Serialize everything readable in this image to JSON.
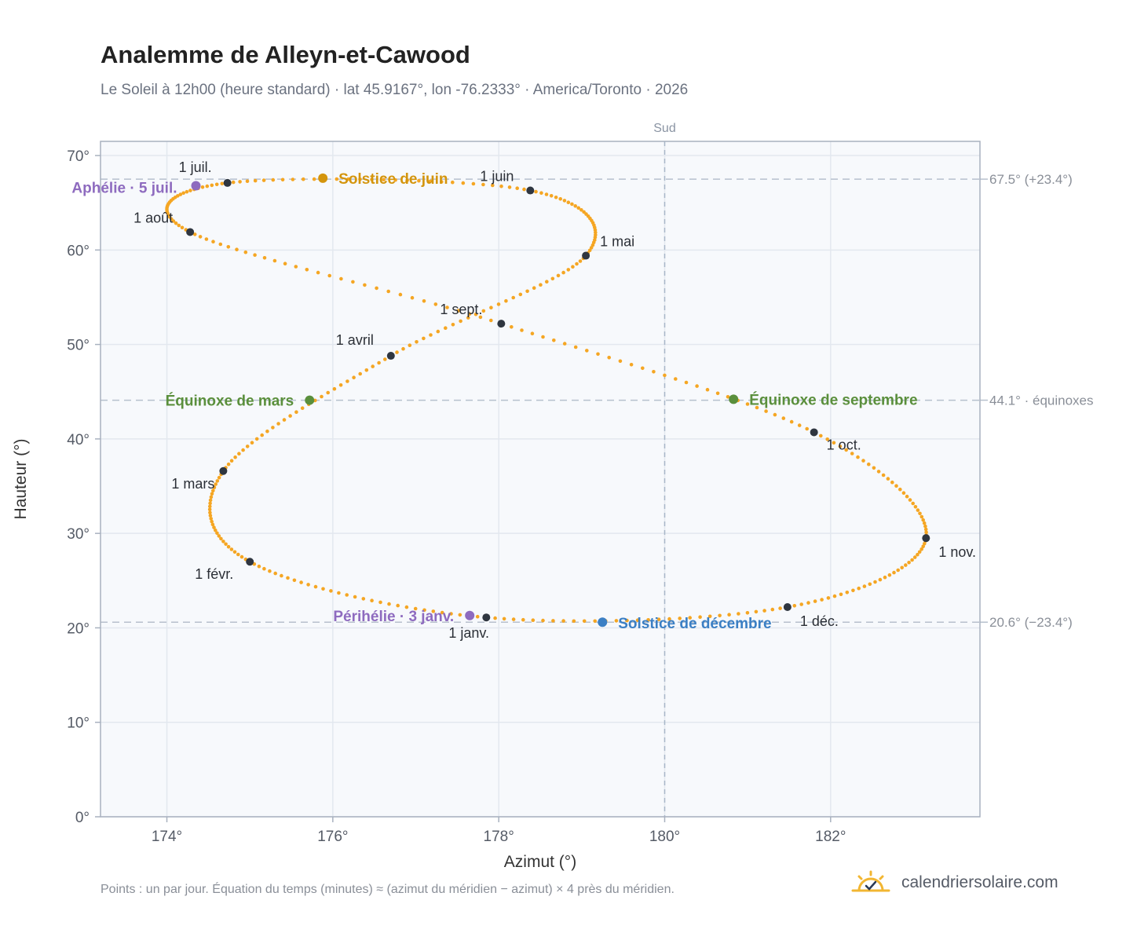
{
  "header": {
    "title": "Analemme de Alleyn-et-Cawood",
    "subtitle": "Le Soleil à 12h00 (heure standard) · lat 45.9167°, lon -76.2333° · America/Toronto · 2026"
  },
  "footer": {
    "note": "Points : un par jour. Équation du temps (minutes) ≈ (azimut du méridien − azimut) × 4 près du méridien.",
    "brand": "calendriersolaire.com",
    "brand_icon": "sun-check-icon"
  },
  "chart_data": {
    "type": "scatter",
    "xlabel": "Azimut (°)",
    "ylabel": "Hauteur (°)",
    "xlim": [
      173.2,
      183.8
    ],
    "ylim": [
      0,
      71.5
    ],
    "x_ticks": [
      174,
      176,
      178,
      180,
      182
    ],
    "x_tick_labels": [
      "174°",
      "176°",
      "178°",
      "180°",
      "182°"
    ],
    "y_ticks": [
      0,
      10,
      20,
      30,
      40,
      50,
      60,
      70
    ],
    "y_tick_labels": [
      "0°",
      "10°",
      "20°",
      "30°",
      "40°",
      "50°",
      "60°",
      "70°"
    ],
    "grid": true,
    "meridian": {
      "x": 180,
      "label": "Sud"
    },
    "reference_lines": [
      {
        "y": 67.5,
        "label": "67.5° (+23.4°)"
      },
      {
        "y": 44.1,
        "label": "44.1° · équinoxes"
      },
      {
        "y": 20.6,
        "label": "20.6° (−23.4°)"
      }
    ],
    "daily_points_color": "#f5a623",
    "month_points": [
      {
        "label": "1 janv.",
        "azimuth": 177.85,
        "altitude": 21.1
      },
      {
        "label": "1 févr.",
        "azimuth": 175.0,
        "altitude": 27.0
      },
      {
        "label": "1 mars",
        "azimuth": 174.68,
        "altitude": 36.6
      },
      {
        "label": "1 avril",
        "azimuth": 176.7,
        "altitude": 48.8
      },
      {
        "label": "1 mai",
        "azimuth": 179.05,
        "altitude": 59.4
      },
      {
        "label": "1 juin",
        "azimuth": 178.38,
        "altitude": 66.3
      },
      {
        "label": "1 juil.",
        "azimuth": 174.73,
        "altitude": 67.1
      },
      {
        "label": "1 août",
        "azimuth": 174.28,
        "altitude": 61.9
      },
      {
        "label": "1 sept.",
        "azimuth": 178.03,
        "altitude": 52.2
      },
      {
        "label": "1 oct.",
        "azimuth": 181.8,
        "altitude": 40.7
      },
      {
        "label": "1 nov.",
        "azimuth": 183.15,
        "altitude": 29.5
      },
      {
        "label": "1 déc.",
        "azimuth": 181.48,
        "altitude": 22.2
      }
    ],
    "events": [
      {
        "label": "Périhélie · 3 janv.",
        "azimuth": 177.65,
        "altitude": 21.3,
        "color": "#8e6bbf"
      },
      {
        "label": "Équinoxe de mars",
        "azimuth": 175.72,
        "altitude": 44.1,
        "color": "#5a8f3c"
      },
      {
        "label": "Solstice de juin",
        "azimuth": 175.88,
        "altitude": 67.6,
        "color": "#d4950d"
      },
      {
        "label": "Aphélie · 5 juil.",
        "azimuth": 174.35,
        "altitude": 66.8,
        "color": "#8e6bbf"
      },
      {
        "label": "Équinoxe de septembre",
        "azimuth": 180.83,
        "altitude": 44.2,
        "color": "#5a8f3c"
      },
      {
        "label": "Solstice de décembre",
        "azimuth": 179.25,
        "altitude": 20.6,
        "color": "#3b7fc4"
      }
    ]
  }
}
